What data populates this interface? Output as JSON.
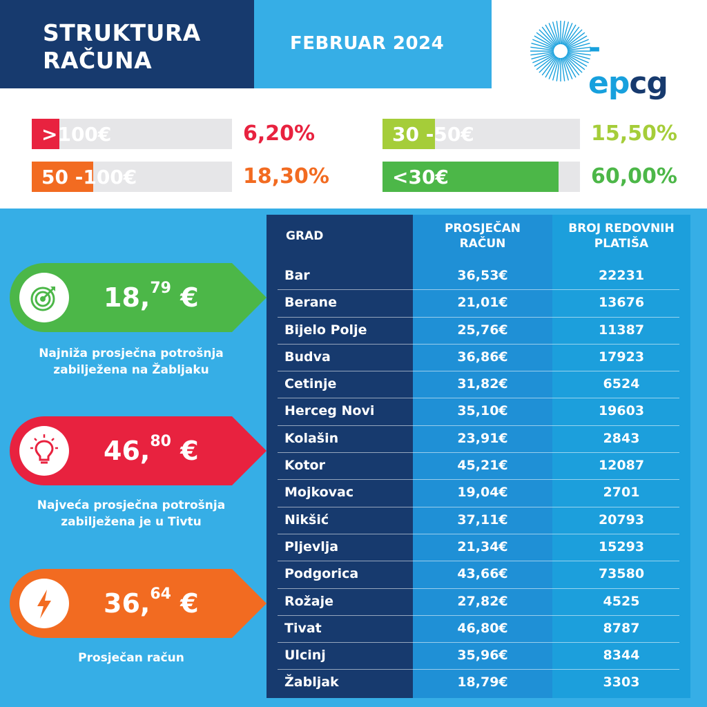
{
  "header": {
    "title_line1": "STRUKTURA",
    "title_line2": "RAČUNA",
    "period": "FEBRUAR 2024",
    "logo_text_ep": "-ep",
    "logo_text_cg": "cg"
  },
  "legend": [
    {
      "label": ">100€",
      "percent": "6,20%",
      "share": 0.062,
      "color": "#e8223f"
    },
    {
      "label": "50 -100€",
      "percent": "18,30%",
      "share": 0.183,
      "color": "#f26b21"
    },
    {
      "label": "30 -50€",
      "percent": "15,50%",
      "share": 0.155,
      "color": "#a5cd39"
    },
    {
      "label": "<30€",
      "percent": "60,00%",
      "share": 0.6,
      "color": "#4cb748"
    }
  ],
  "stats": [
    {
      "whole": "18,",
      "decimal": "79",
      "currency": "€",
      "caption_line1": "Najniža prosječna potrošnja",
      "caption_line2": "zabilježena na Žabljaku",
      "color": "#4cb748",
      "icon": "target-icon"
    },
    {
      "whole": "46,",
      "decimal": "80",
      "currency": "€",
      "caption_line1": "Najveća prosječna potrošnja",
      "caption_line2": "zabilježena je u Tivtu",
      "color": "#e8223f",
      "icon": "lightbulb-icon"
    },
    {
      "whole": "36,",
      "decimal": "64",
      "currency": "€",
      "caption_line1": "Prosječan račun",
      "caption_line2": "",
      "color": "#f26b21",
      "icon": "lightning-icon"
    }
  ],
  "table": {
    "headers": {
      "city": "GRAD",
      "avg_line1": "PROSJEČAN",
      "avg_line2": "RAČUN",
      "count_line1": "BROJ REDOVNIH",
      "count_line2": "PLATIŠA"
    },
    "rows": [
      {
        "city": "Bar",
        "avg": "36,53€",
        "count": "22231"
      },
      {
        "city": "Berane",
        "avg": "21,01€",
        "count": "13676"
      },
      {
        "city": "Bijelo Polje",
        "avg": "25,76€",
        "count": "11387"
      },
      {
        "city": "Budva",
        "avg": "36,86€",
        "count": "17923"
      },
      {
        "city": "Cetinje",
        "avg": "31,82€",
        "count": "6524"
      },
      {
        "city": "Herceg Novi",
        "avg": "35,10€",
        "count": "19603"
      },
      {
        "city": "Kolašin",
        "avg": "23,91€",
        "count": "2843"
      },
      {
        "city": "Kotor",
        "avg": "45,21€",
        "count": "12087"
      },
      {
        "city": "Mojkovac",
        "avg": "19,04€",
        "count": "2701"
      },
      {
        "city": "Nikšić",
        "avg": "37,11€",
        "count": "20793"
      },
      {
        "city": "Pljevlja",
        "avg": "21,34€",
        "count": "15293"
      },
      {
        "city": "Podgorica",
        "avg": "43,66€",
        "count": "73580"
      },
      {
        "city": "Rožaje",
        "avg": "27,82€",
        "count": "4525"
      },
      {
        "city": "Tivat",
        "avg": "46,80€",
        "count": "8787"
      },
      {
        "city": "Ulcinj",
        "avg": "35,96€",
        "count": "8344"
      },
      {
        "city": "Žabljak",
        "avg": "18,79€",
        "count": "3303"
      }
    ]
  }
}
